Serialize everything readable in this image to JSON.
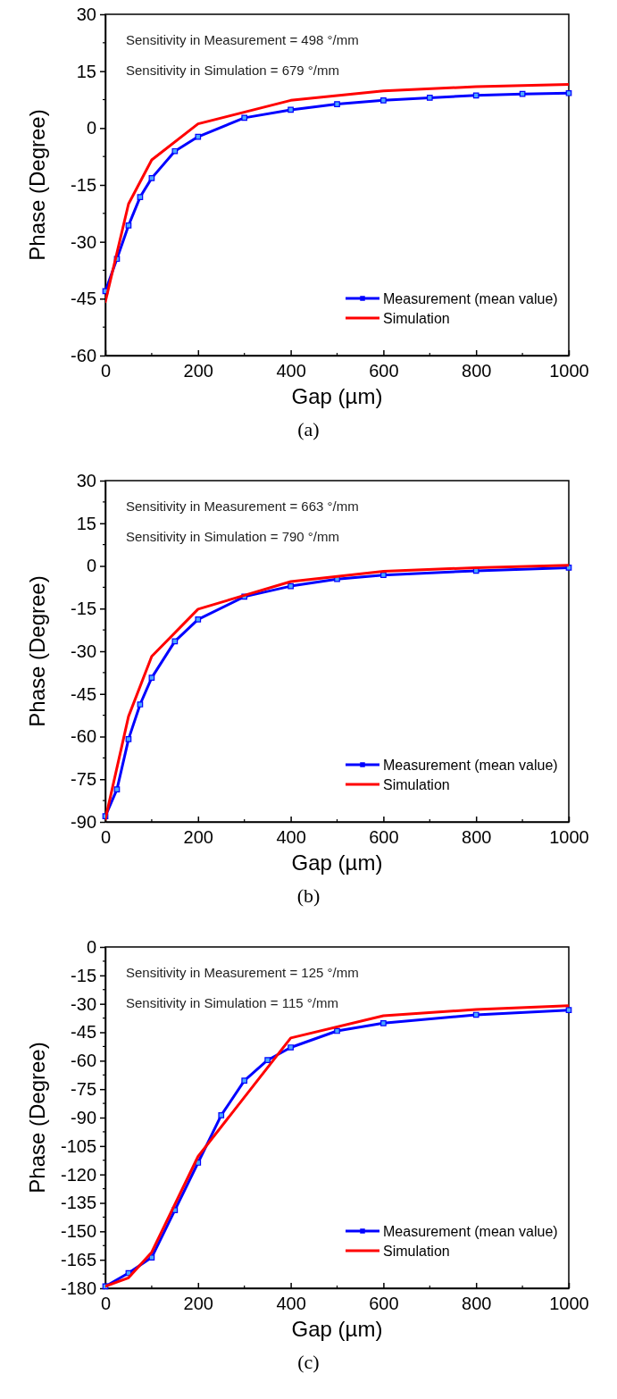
{
  "chart_data": [
    {
      "type": "line",
      "xlabel": "Gap (µm)",
      "ylabel": "Phase (Degree)",
      "xlim": [
        0,
        1000
      ],
      "xticks": [
        0,
        200,
        400,
        600,
        800,
        1000
      ],
      "ylim": [
        -60,
        30
      ],
      "yticks": [
        -60,
        -45,
        -30,
        -15,
        0,
        15,
        30
      ],
      "grid": false,
      "legend": "bottom right",
      "annotations": [
        "Sensitivity in Measurement = 498 °/mm",
        "Sensitivity in Simulation = 679 °/mm",
        "(a)"
      ],
      "series": [
        {
          "name": "Measurement (mean value)",
          "color": "#0000ff",
          "marker": "square",
          "x": [
            0,
            25,
            50,
            75,
            100,
            150,
            200,
            300,
            400,
            500,
            600,
            700,
            800,
            900,
            1000
          ],
          "values": [
            -43,
            -34.5,
            -25.7,
            -18.2,
            -13.2,
            -6.1,
            -2.3,
            2.7,
            4.8,
            6.3,
            7.3,
            8,
            8.6,
            9,
            9.2
          ]
        },
        {
          "name": "Simulation",
          "color": "#ff0000",
          "marker": "none",
          "x": [
            0,
            50,
            100,
            200,
            400,
            600,
            800,
            1000
          ],
          "values": [
            -45.8,
            -20,
            -8.4,
            1.1,
            7.3,
            9.8,
            10.9,
            11.5
          ]
        }
      ]
    },
    {
      "type": "line",
      "xlabel": "Gap (µm)",
      "ylabel": "Phase (Degree)",
      "xlim": [
        0,
        1000
      ],
      "xticks": [
        0,
        200,
        400,
        600,
        800,
        1000
      ],
      "ylim": [
        -90,
        30
      ],
      "yticks": [
        -90,
        -75,
        -60,
        -45,
        -30,
        -15,
        0,
        15,
        30
      ],
      "grid": false,
      "legend": "bottom right",
      "annotations": [
        "Sensitivity in Measurement = 663 °/mm",
        "Sensitivity in Simulation = 790 °/mm",
        "(b)"
      ],
      "series": [
        {
          "name": "Measurement (mean value)",
          "color": "#0000ff",
          "marker": "square",
          "x": [
            0,
            25,
            50,
            75,
            100,
            150,
            200,
            300,
            400,
            500,
            600,
            800,
            1000
          ],
          "values": [
            -88,
            -78.6,
            -60.9,
            -48.7,
            -39.3,
            -26.5,
            -18.8,
            -10.8,
            -7.1,
            -4.6,
            -3.2,
            -1.7,
            -0.6
          ]
        },
        {
          "name": "Simulation",
          "color": "#ff0000",
          "marker": "none",
          "x": [
            0,
            50,
            100,
            200,
            400,
            600,
            800,
            1000
          ],
          "values": [
            -89,
            -52.9,
            -31.8,
            -15.2,
            -5.5,
            -1.9,
            -0.6,
            0.2
          ]
        }
      ]
    },
    {
      "type": "line",
      "xlabel": "Gap (µm)",
      "ylabel": "Phase (Degree)",
      "xlim": [
        0,
        1000
      ],
      "xticks": [
        0,
        200,
        400,
        600,
        800,
        1000
      ],
      "ylim": [
        -180,
        0
      ],
      "yticks": [
        -180,
        -165,
        -150,
        -135,
        -120,
        -105,
        -90,
        -75,
        -60,
        -45,
        -30,
        -15,
        0
      ],
      "grid": false,
      "legend": "bottom right",
      "annotations": [
        "Sensitivity in Measurement = 125 °/mm",
        "Sensitivity in Simulation = 115 °/mm",
        "(c)"
      ],
      "series": [
        {
          "name": "Measurement (mean value)",
          "color": "#0000ff",
          "marker": "square",
          "x": [
            0,
            50,
            100,
            150,
            200,
            250,
            300,
            350,
            400,
            500,
            600,
            800,
            1000
          ],
          "values": [
            -179,
            -172,
            -163.8,
            -138.8,
            -113.8,
            -88.8,
            -70.5,
            -59.7,
            -53,
            -44.3,
            -40.2,
            -35.8,
            -33.3
          ]
        },
        {
          "name": "Simulation",
          "color": "#ff0000",
          "marker": "none",
          "x": [
            0,
            50,
            100,
            200,
            400,
            600,
            800,
            1000
          ],
          "values": [
            -179,
            -174.5,
            -161,
            -110.5,
            -48,
            -36.3,
            -33,
            -31
          ]
        }
      ]
    }
  ]
}
